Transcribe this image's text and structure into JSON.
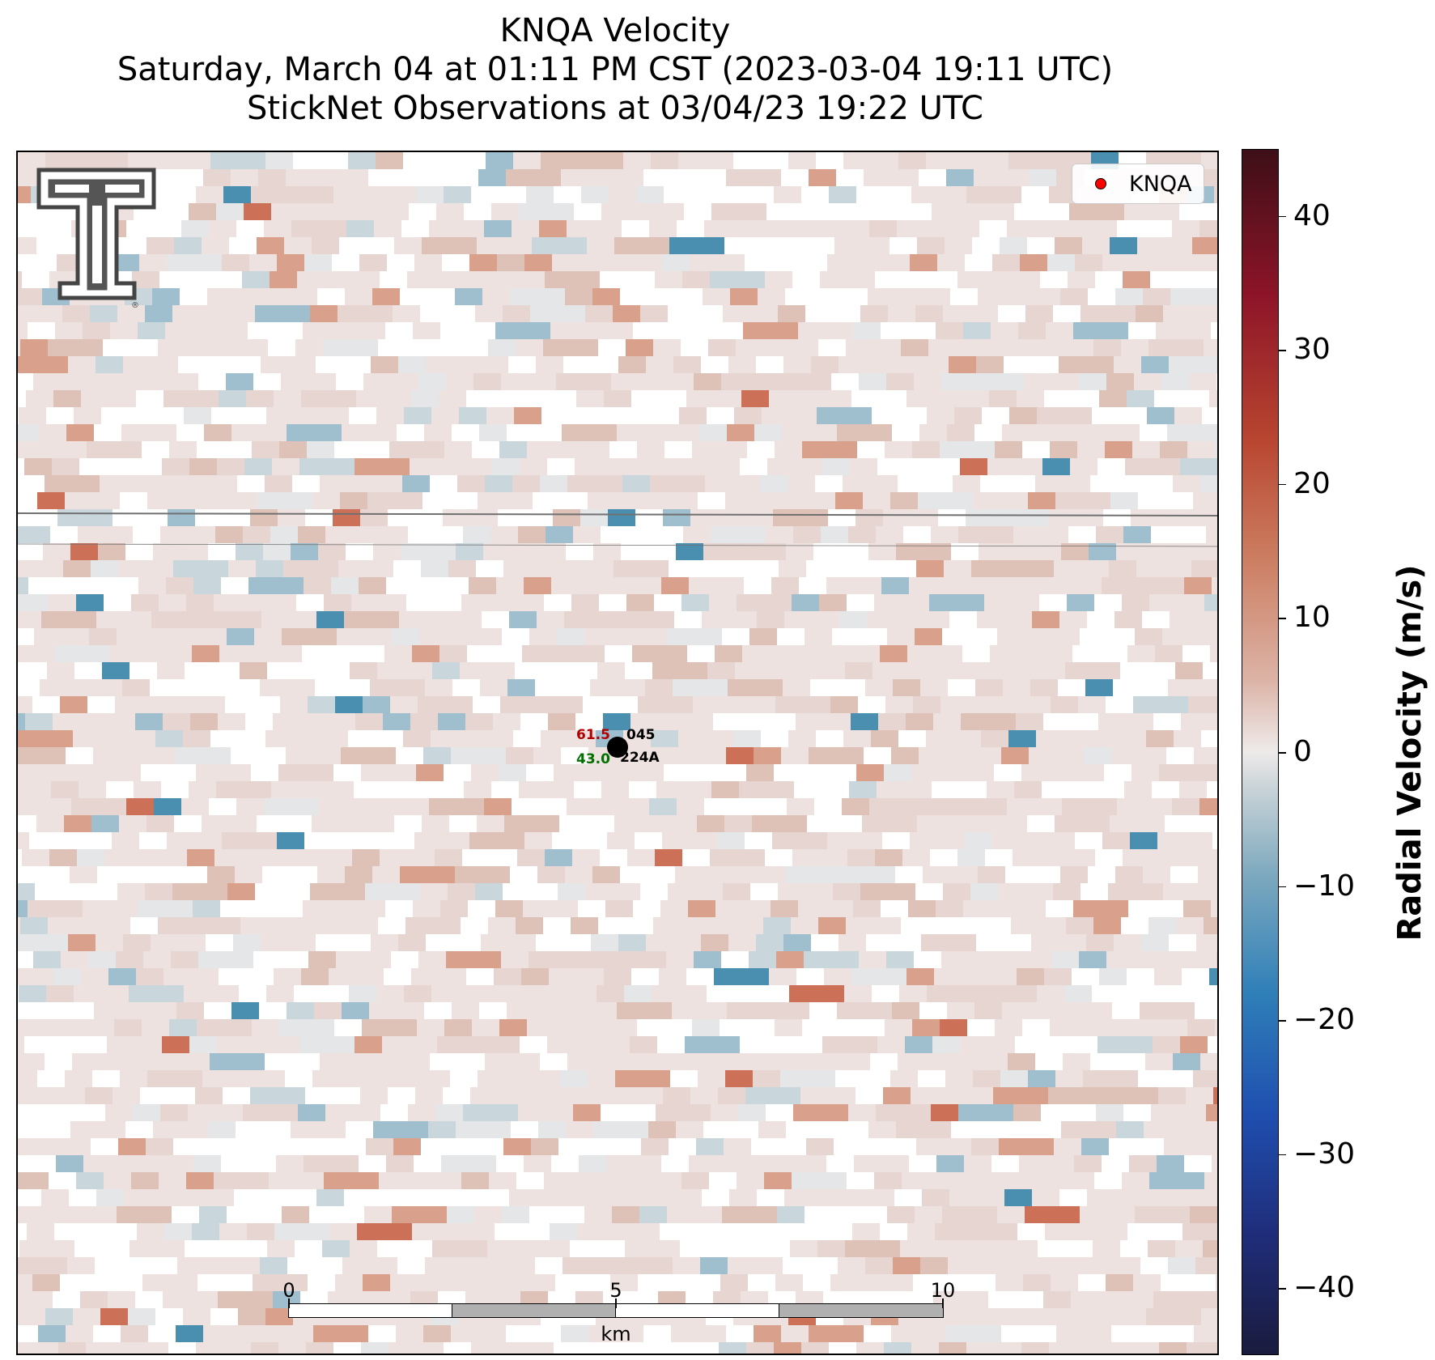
{
  "title": {
    "line1": "KNQA Velocity",
    "line2": "Saturday, March 04 at 01:11 PM CST (2023-03-04 19:11 UTC)",
    "line3": "StickNet Observations at 03/04/23 19:22 UTC"
  },
  "legend": {
    "label": "KNQA",
    "marker_color": "#ff0000"
  },
  "logo": {
    "icon": "texas-tech-double-t-logo-icon",
    "registered_mark": "®"
  },
  "station": {
    "wind_speed": "61.5",
    "wind_dir": "045",
    "gust_or_temp": "43.0",
    "station_id": "224A",
    "colors": {
      "speed": "#b00000",
      "gust": "#007000",
      "id": "#000000"
    }
  },
  "scalebar": {
    "labels": [
      "0",
      "5",
      "10"
    ],
    "unit": "km"
  },
  "colorbar": {
    "title": "Radial Velocity (m/s)",
    "ticks": [
      "40",
      "30",
      "20",
      "10",
      "0",
      "−10",
      "−20",
      "−30",
      "−40"
    ],
    "range": [
      -45,
      45
    ],
    "colormap": "balance (blue negative, red positive)"
  },
  "colors": {
    "positive": "#d98b74",
    "negative": "#4b8fb0",
    "neutral": "#eeeaea"
  }
}
